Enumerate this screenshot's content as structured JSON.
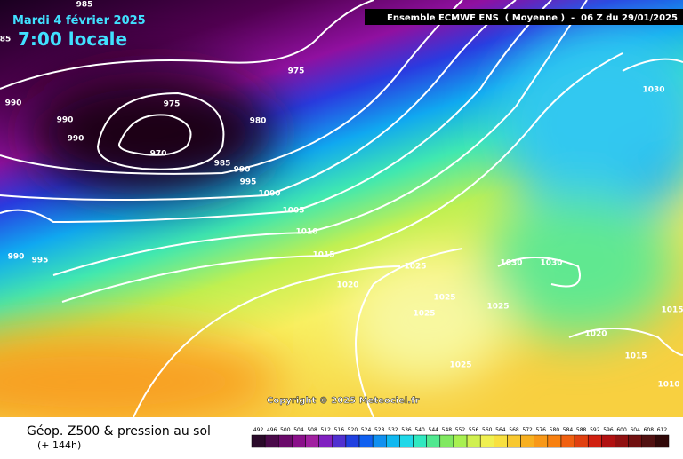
{
  "header": {
    "date": "Mardi 4 février 2025",
    "time": "7:00 locale",
    "model": "Ensemble ECMWF ENS  ( Moyenne )  -  06 Z du 29/01/2025"
  },
  "copyright": "Copyright © 2025 Meteociel.fr",
  "footer": {
    "title": "Géop. Z500 & pression au sol",
    "lead": "(+ 144h)"
  },
  "isobar_labels": [
    "985",
    "85",
    "990",
    "990",
    "990",
    "975",
    "975",
    "970",
    "980",
    "985",
    "990",
    "995",
    "1000",
    "1005",
    "1010",
    "1015",
    "1020",
    "990",
    "995",
    "1025",
    "1025",
    "1025",
    "1030",
    "1030",
    "1025",
    "1030",
    "1015",
    "1020",
    "1015",
    "1025",
    "1010"
  ],
  "legend": {
    "values": [
      492,
      496,
      500,
      504,
      508,
      512,
      516,
      520,
      524,
      528,
      532,
      536,
      540,
      544,
      548,
      552,
      556,
      560,
      564,
      568,
      572,
      576,
      580,
      584,
      588,
      592,
      596,
      600,
      604,
      608,
      612
    ],
    "colors": [
      "#2a0a2a",
      "#4a0a4a",
      "#6a0a6a",
      "#8a108a",
      "#a020a0",
      "#8020c0",
      "#5030d0",
      "#2040e0",
      "#1060f0",
      "#1090f0",
      "#10b8f0",
      "#20d8e8",
      "#30e8c0",
      "#50e890",
      "#80e860",
      "#a8f050",
      "#d0f050",
      "#f0f050",
      "#f8e040",
      "#f8c830",
      "#f8b020",
      "#f89818",
      "#f88010",
      "#f06010",
      "#e04010",
      "#d02010",
      "#b01010",
      "#901010",
      "#701010",
      "#501010",
      "#300808"
    ]
  }
}
